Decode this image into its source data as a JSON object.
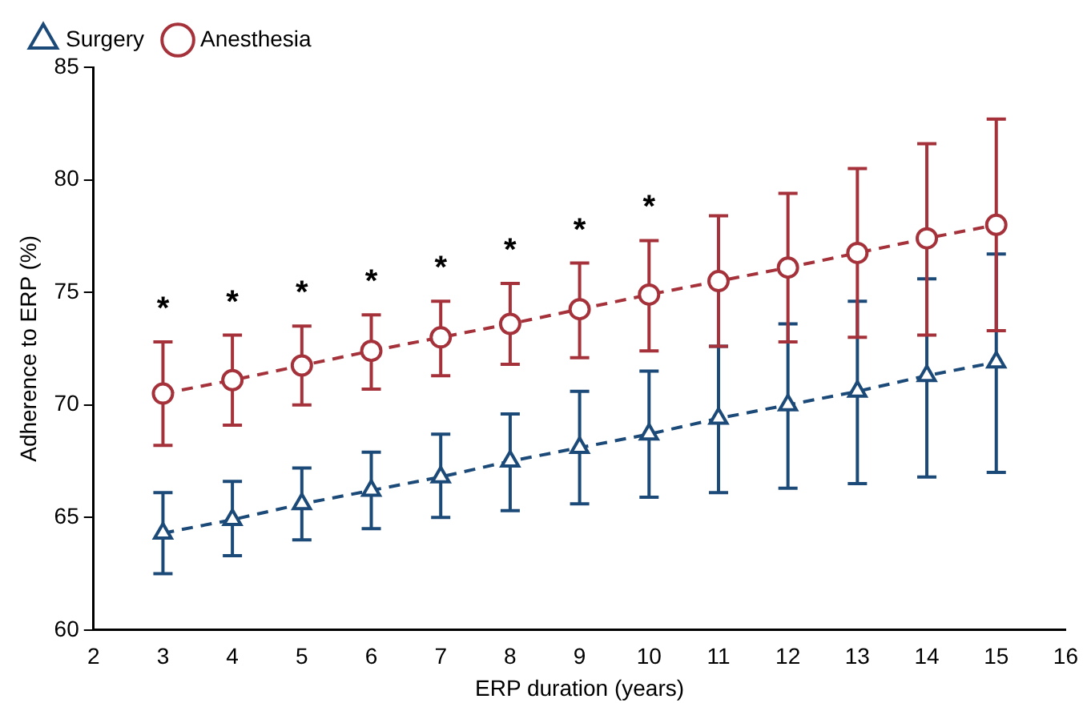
{
  "chart_data": {
    "type": "line",
    "xlabel": "ERP duration (years)",
    "ylabel": "Adherence to ERP (%)",
    "x": [
      3,
      4,
      5,
      6,
      7,
      8,
      9,
      10,
      11,
      12,
      13,
      14,
      15
    ],
    "series": [
      {
        "name": "Surgery",
        "color": "#1c4a78",
        "marker": "triangle",
        "values": [
          64.3,
          64.9,
          65.6,
          66.2,
          66.8,
          67.5,
          68.1,
          68.7,
          69.4,
          70.0,
          70.6,
          71.3,
          71.9
        ],
        "errors": [
          [
            62.5,
            66.1
          ],
          [
            63.3,
            66.6
          ],
          [
            64.0,
            67.2
          ],
          [
            64.5,
            67.9
          ],
          [
            65.0,
            68.7
          ],
          [
            65.3,
            69.6
          ],
          [
            65.6,
            70.6
          ],
          [
            65.9,
            71.5
          ],
          [
            66.1,
            72.6
          ],
          [
            66.3,
            73.6
          ],
          [
            66.5,
            74.6
          ],
          [
            66.8,
            75.6
          ],
          [
            67.0,
            76.7
          ]
        ]
      },
      {
        "name": "Anesthesia",
        "color": "#a5323a",
        "marker": "circle",
        "values": [
          70.5,
          71.1,
          71.75,
          72.4,
          73.0,
          73.6,
          74.25,
          74.9,
          75.5,
          76.1,
          76.75,
          77.4,
          78.0
        ],
        "errors": [
          [
            68.2,
            72.8
          ],
          [
            69.1,
            73.1
          ],
          [
            70.0,
            73.5
          ],
          [
            70.7,
            74.0
          ],
          [
            71.3,
            74.6
          ],
          [
            71.8,
            75.4
          ],
          [
            72.1,
            76.3
          ],
          [
            72.4,
            77.3
          ],
          [
            72.6,
            78.4
          ],
          [
            72.8,
            79.4
          ],
          [
            73.0,
            80.5
          ],
          [
            73.1,
            81.6
          ],
          [
            73.3,
            82.7
          ]
        ]
      }
    ],
    "xlim": [
      2,
      16
    ],
    "xticks": [
      2,
      3,
      4,
      5,
      6,
      7,
      8,
      9,
      10,
      11,
      12,
      13,
      14,
      15,
      16
    ],
    "ylim": [
      60,
      85
    ],
    "yticks": [
      60,
      65,
      70,
      75,
      80,
      85
    ],
    "line_style": "dashed",
    "grid": false,
    "legend": "top left",
    "annotations": [
      {
        "text": "*",
        "x": 3,
        "y": 72.8
      },
      {
        "text": "*",
        "x": 4,
        "y": 73.1
      },
      {
        "text": "*",
        "x": 5,
        "y": 73.5
      },
      {
        "text": "*",
        "x": 6,
        "y": 74.0
      },
      {
        "text": "*",
        "x": 7,
        "y": 74.6
      },
      {
        "text": "*",
        "x": 8,
        "y": 75.4
      },
      {
        "text": "*",
        "x": 9,
        "y": 76.3
      },
      {
        "text": "*",
        "x": 10,
        "y": 77.3
      }
    ]
  }
}
